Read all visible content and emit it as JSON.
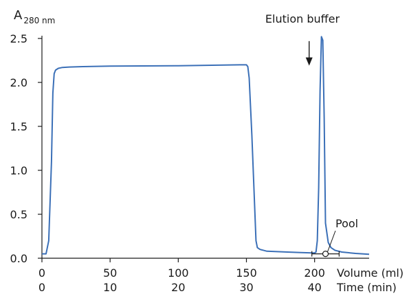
{
  "chart_data": {
    "type": "line",
    "title": "",
    "ylabel": "A",
    "ylabel_subscript": "280 nm",
    "xlabel": "Volume (ml)",
    "xlabel_secondary": "Time (min)",
    "xlim": [
      0,
      240
    ],
    "ylim": [
      0,
      2.5
    ],
    "x_ticks": [
      0,
      50,
      100,
      150,
      200
    ],
    "x_tick_labels": [
      "0",
      "50",
      "100",
      "150",
      "200"
    ],
    "x_secondary_ticks": [
      0,
      50,
      100,
      150,
      200
    ],
    "x_secondary_tick_labels": [
      "0",
      "10",
      "20",
      "30",
      "40"
    ],
    "y_ticks": [
      0,
      0.5,
      1.0,
      1.5,
      2.0,
      2.5
    ],
    "y_tick_labels": [
      "0.0",
      "0.5",
      "1.0",
      "1.5",
      "2.0",
      "2.5"
    ],
    "grid": false,
    "series": [
      {
        "color": "#3a6fb7",
        "x": [
          0,
          3,
          5,
          7,
          8,
          9,
          10,
          12,
          15,
          20,
          30,
          50,
          100,
          145,
          150,
          151,
          152,
          154,
          156,
          157,
          158,
          160,
          165,
          180,
          190,
          198,
          200,
          201,
          202,
          203,
          204,
          205,
          206,
          207,
          208,
          210,
          212,
          215,
          220,
          230,
          240
        ],
        "y": [
          0.05,
          0.05,
          0.2,
          1.1,
          1.88,
          2.1,
          2.14,
          2.16,
          2.17,
          2.175,
          2.18,
          2.185,
          2.19,
          2.2,
          2.2,
          2.18,
          2.05,
          1.4,
          0.6,
          0.2,
          0.12,
          0.1,
          0.08,
          0.07,
          0.065,
          0.06,
          0.06,
          0.07,
          0.2,
          0.8,
          1.9,
          2.52,
          2.48,
          1.6,
          0.4,
          0.18,
          0.12,
          0.09,
          0.07,
          0.055,
          0.045
        ]
      }
    ],
    "annotations": [
      {
        "text": "Elution buffer",
        "arrow_x": 196,
        "arrow_from_y": 2.47,
        "arrow_to_y": 2.19
      },
      {
        "text": "Pool",
        "marker_x": 208,
        "range_x": [
          198,
          218
        ],
        "range_y": 0.05
      }
    ]
  }
}
